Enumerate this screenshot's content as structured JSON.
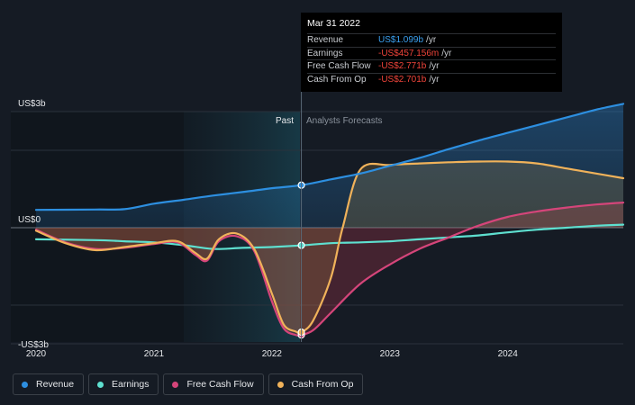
{
  "chart_data": {
    "type": "line",
    "y_labels": {
      "top": "US$3b",
      "zero": "US$0",
      "bottom": "-US$3b"
    },
    "ylim": [
      -3.0,
      3.0
    ],
    "x_ticks": [
      "2020",
      "2021",
      "2022",
      "2023",
      "2024"
    ],
    "regions": {
      "past": "Past",
      "forecast": "Analysts Forecasts"
    },
    "highlight_x": 2022.25,
    "series": [
      {
        "name": "Revenue",
        "color": "#2d8fe0",
        "points": [
          [
            2020.0,
            0.46
          ],
          [
            2020.5,
            0.47
          ],
          [
            2020.75,
            0.48
          ],
          [
            2021.0,
            0.62
          ],
          [
            2021.25,
            0.72
          ],
          [
            2021.5,
            0.83
          ],
          [
            2021.75,
            0.92
          ],
          [
            2022.0,
            1.02
          ],
          [
            2022.25,
            1.099
          ],
          [
            2022.5,
            1.25
          ],
          [
            2022.75,
            1.4
          ],
          [
            2023.0,
            1.6
          ],
          [
            2023.25,
            1.8
          ],
          [
            2023.5,
            2.03
          ],
          [
            2023.75,
            2.25
          ],
          [
            2024.0,
            2.45
          ],
          [
            2024.25,
            2.65
          ],
          [
            2024.5,
            2.85
          ],
          [
            2024.75,
            3.05
          ],
          [
            2024.98,
            3.2
          ]
        ]
      },
      {
        "name": "Earnings",
        "color": "#5ee0d0",
        "points": [
          [
            2020.0,
            -0.3
          ],
          [
            2020.5,
            -0.32
          ],
          [
            2020.75,
            -0.35
          ],
          [
            2021.0,
            -0.38
          ],
          [
            2021.25,
            -0.45
          ],
          [
            2021.5,
            -0.55
          ],
          [
            2021.75,
            -0.52
          ],
          [
            2022.0,
            -0.5
          ],
          [
            2022.25,
            -0.457
          ],
          [
            2022.5,
            -0.4
          ],
          [
            2022.75,
            -0.38
          ],
          [
            2023.0,
            -0.35
          ],
          [
            2023.25,
            -0.3
          ],
          [
            2023.5,
            -0.25
          ],
          [
            2023.75,
            -0.2
          ],
          [
            2024.0,
            -0.12
          ],
          [
            2024.25,
            -0.05
          ],
          [
            2024.5,
            0.0
          ],
          [
            2024.75,
            0.05
          ],
          [
            2024.98,
            0.08
          ]
        ]
      },
      {
        "name": "Free Cash Flow",
        "color": "#d5457a",
        "points": [
          [
            2020.0,
            -0.05
          ],
          [
            2020.25,
            -0.38
          ],
          [
            2020.5,
            -0.55
          ],
          [
            2020.75,
            -0.52
          ],
          [
            2021.0,
            -0.42
          ],
          [
            2021.2,
            -0.38
          ],
          [
            2021.35,
            -0.7
          ],
          [
            2021.45,
            -0.85
          ],
          [
            2021.55,
            -0.35
          ],
          [
            2021.7,
            -0.22
          ],
          [
            2021.85,
            -0.6
          ],
          [
            2022.0,
            -1.9
          ],
          [
            2022.1,
            -2.6
          ],
          [
            2022.2,
            -2.77
          ],
          [
            2022.25,
            -2.771
          ],
          [
            2022.35,
            -2.65
          ],
          [
            2022.5,
            -2.2
          ],
          [
            2022.75,
            -1.45
          ],
          [
            2023.0,
            -0.95
          ],
          [
            2023.25,
            -0.55
          ],
          [
            2023.5,
            -0.25
          ],
          [
            2023.75,
            0.05
          ],
          [
            2024.0,
            0.28
          ],
          [
            2024.25,
            0.42
          ],
          [
            2024.5,
            0.52
          ],
          [
            2024.75,
            0.6
          ],
          [
            2024.98,
            0.65
          ]
        ]
      },
      {
        "name": "Cash From Op",
        "color": "#f0b25a",
        "points": [
          [
            2020.0,
            -0.08
          ],
          [
            2020.25,
            -0.4
          ],
          [
            2020.5,
            -0.58
          ],
          [
            2020.75,
            -0.5
          ],
          [
            2021.0,
            -0.4
          ],
          [
            2021.2,
            -0.35
          ],
          [
            2021.35,
            -0.65
          ],
          [
            2021.45,
            -0.8
          ],
          [
            2021.55,
            -0.3
          ],
          [
            2021.7,
            -0.15
          ],
          [
            2021.85,
            -0.55
          ],
          [
            2022.0,
            -1.7
          ],
          [
            2022.1,
            -2.5
          ],
          [
            2022.2,
            -2.68
          ],
          [
            2022.25,
            -2.701
          ],
          [
            2022.35,
            -2.4
          ],
          [
            2022.5,
            -1.3
          ],
          [
            2022.6,
            0.0
          ],
          [
            2022.75,
            1.5
          ],
          [
            2023.0,
            1.62
          ],
          [
            2023.25,
            1.66
          ],
          [
            2023.5,
            1.69
          ],
          [
            2023.75,
            1.71
          ],
          [
            2024.0,
            1.71
          ],
          [
            2024.25,
            1.66
          ],
          [
            2024.5,
            1.53
          ],
          [
            2024.75,
            1.4
          ],
          [
            2024.98,
            1.28
          ]
        ]
      }
    ]
  },
  "tooltip": {
    "date": "Mar 31 2022",
    "rows": [
      {
        "label": "Revenue",
        "value": "US$1.099b",
        "unit": "/yr"
      },
      {
        "label": "Earnings",
        "value": "-US$457.156m",
        "unit": "/yr"
      },
      {
        "label": "Free Cash Flow",
        "value": "-US$2.771b",
        "unit": "/yr"
      },
      {
        "label": "Cash From Op",
        "value": "-US$2.701b",
        "unit": "/yr"
      }
    ]
  },
  "legend": [
    {
      "label": "Revenue",
      "color": "#2d8fe0"
    },
    {
      "label": "Earnings",
      "color": "#5ee0d0"
    },
    {
      "label": "Free Cash Flow",
      "color": "#d5457a"
    },
    {
      "label": "Cash From Op",
      "color": "#f0b25a"
    }
  ]
}
